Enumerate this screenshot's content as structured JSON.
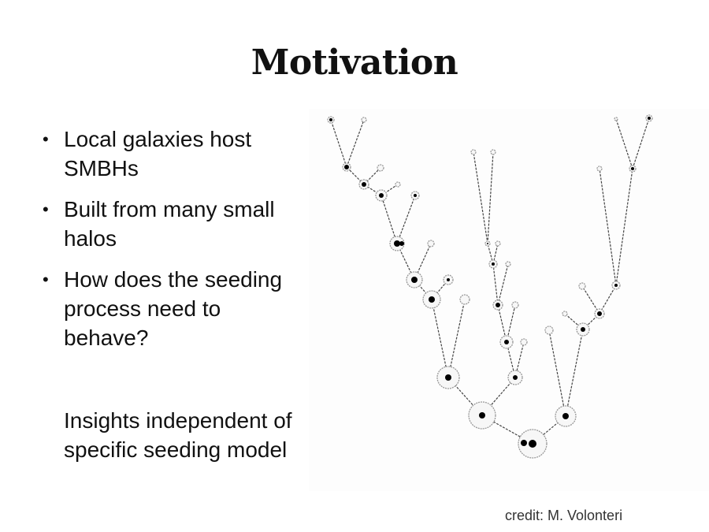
{
  "slide": {
    "title": "Motivation",
    "bullets": [
      "Local galaxies host SMBHs",
      "Built from many small halos",
      "How does the seeding process need to behave?"
    ],
    "insight": "Insights independent of specific seeding model",
    "credit": "credit: M. Volonteri"
  },
  "diagram": {
    "kind": "merger-tree",
    "colors": {
      "line": "#444444",
      "halo_stroke": "#999999",
      "halo_fill": "#f7f7f7",
      "black_hole": "#000000"
    }
  }
}
